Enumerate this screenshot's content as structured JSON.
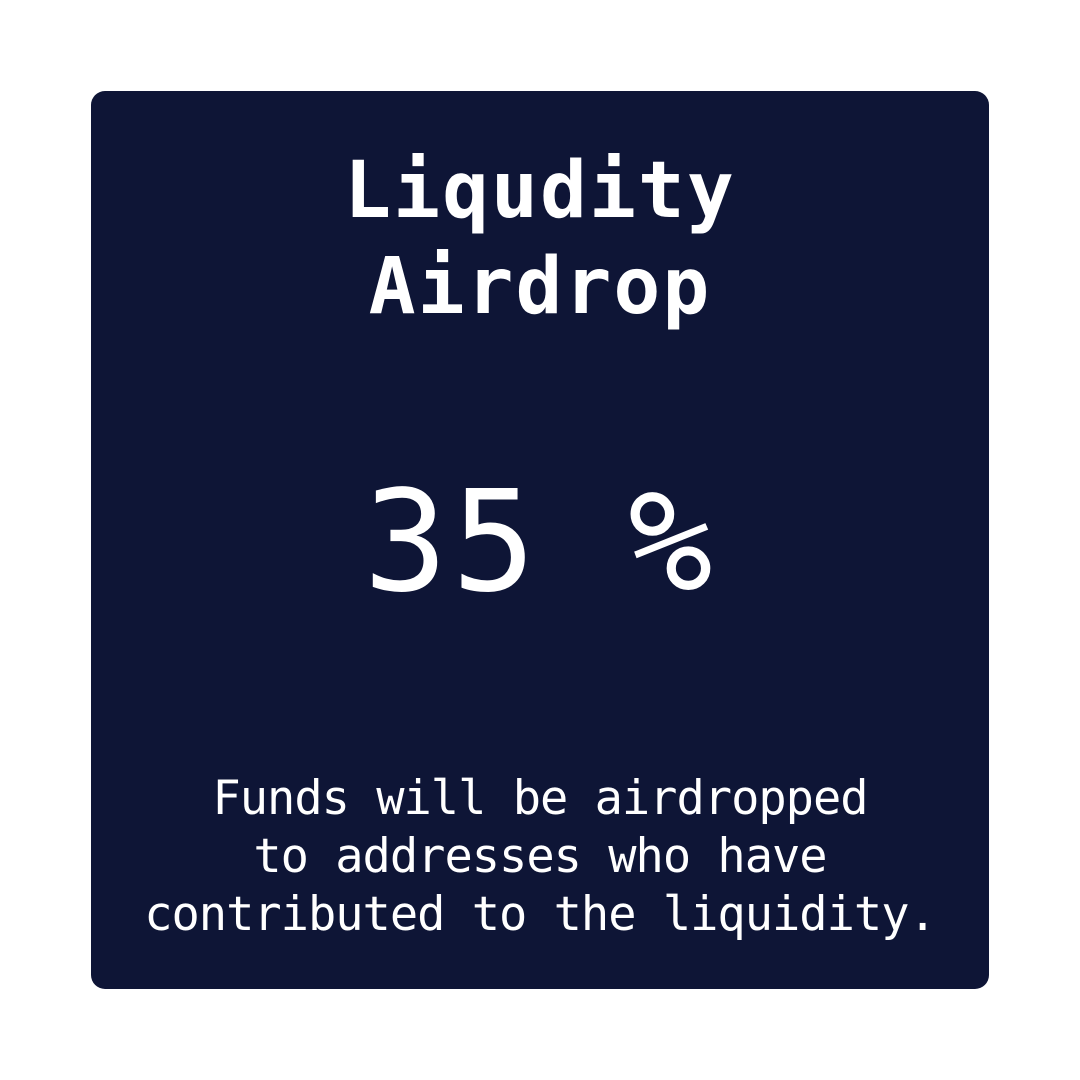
{
  "card": {
    "title_lines": [
      "Liqudity",
      "Airdrop"
    ],
    "percentage": "35 %",
    "description_lines": [
      "Funds will be airdropped",
      "to addresses who have",
      "contributed to the liquidity."
    ]
  },
  "colors": {
    "background": "#ffffff",
    "card": "#0e1536",
    "text": "#ffffff"
  }
}
